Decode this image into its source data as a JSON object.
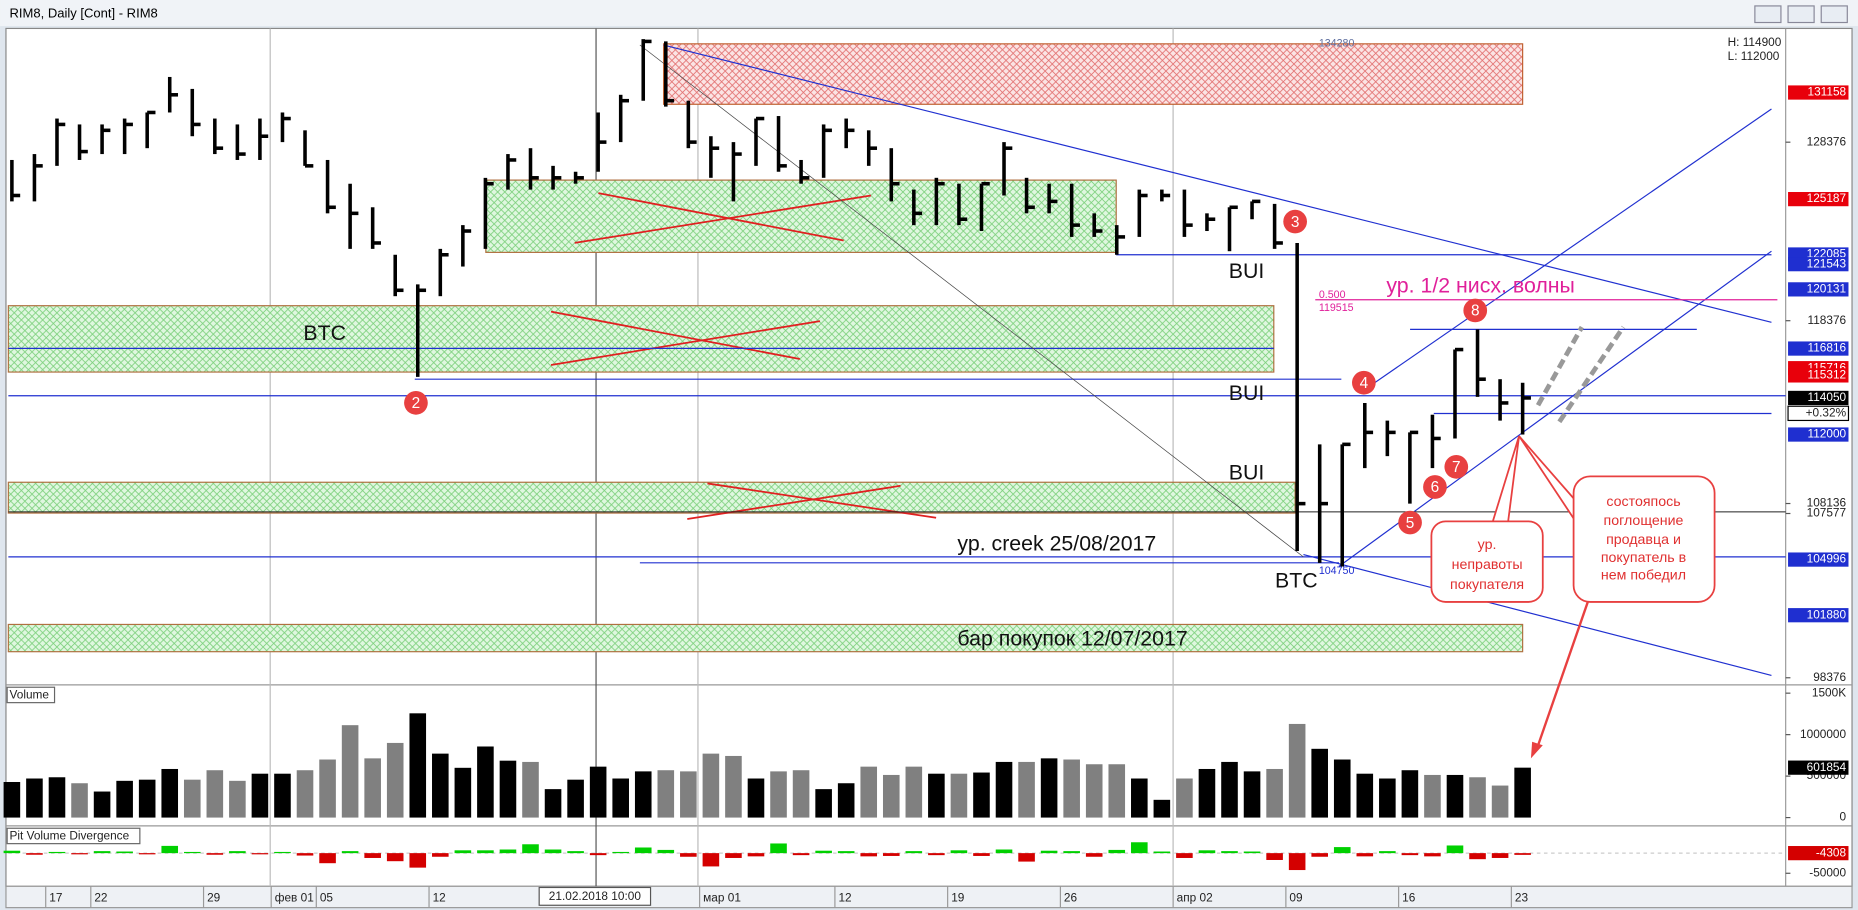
{
  "window": {
    "title": "RIM8, Daily [Cont] - RIM8"
  },
  "chart_data": [
    {
      "type": "ohlc",
      "color": "#000000",
      "categories": [
        null,
        null,
        "17",
        null,
        "22",
        null,
        null,
        null,
        null,
        "29",
        null,
        null,
        "фев 01",
        null,
        "05",
        null,
        null,
        null,
        null,
        "12",
        null,
        null,
        null,
        null,
        null,
        null,
        null,
        null,
        null,
        null,
        null,
        "мар 01",
        null,
        null,
        null,
        null,
        null,
        "12",
        null,
        null,
        null,
        null,
        "19",
        null,
        null,
        null,
        null,
        "26",
        null,
        null,
        null,
        null,
        "апр 02",
        null,
        null,
        null,
        null,
        "09",
        null,
        null,
        null,
        null,
        "16",
        null,
        null,
        null,
        null,
        "23"
      ],
      "high": [
        127380,
        127710,
        129700,
        129370,
        129370,
        129700,
        130040,
        132030,
        131360,
        129700,
        129370,
        129700,
        130040,
        129040,
        127380,
        126050,
        124730,
        122070,
        120410,
        122400,
        123730,
        126380,
        127710,
        128040,
        127050,
        126720,
        130040,
        131030,
        134150,
        134020,
        130700,
        128710,
        128380,
        129700,
        129840,
        127380,
        129370,
        129700,
        129040,
        128040,
        125720,
        126380,
        126050,
        126050,
        128380,
        126380,
        126050,
        126050,
        124390,
        123730,
        125720,
        125720,
        125720,
        124390,
        124730,
        125060,
        124920,
        122730,
        111450,
        111450,
        113770,
        112780,
        112120,
        113110,
        116760,
        117890,
        115100,
        114900
      ],
      "low": [
        125060,
        125060,
        127050,
        127380,
        127710,
        127710,
        128040,
        130040,
        128710,
        127710,
        127380,
        127380,
        128380,
        127050,
        124390,
        122400,
        122400,
        119750,
        115230,
        119750,
        121410,
        122400,
        125720,
        125720,
        125720,
        126050,
        126720,
        128380,
        130700,
        130370,
        128040,
        126380,
        125060,
        127050,
        126720,
        126050,
        126380,
        128040,
        127050,
        125060,
        123730,
        123730,
        123730,
        123400,
        125390,
        124390,
        124390,
        123070,
        123070,
        122070,
        123070,
        125060,
        123070,
        123400,
        122270,
        124060,
        122400,
        105480,
        104810,
        104610,
        110120,
        110790,
        108130,
        110120,
        111780,
        114110,
        112780,
        112000
      ],
      "close": [
        125390,
        127050,
        129370,
        127850,
        129040,
        129370,
        130040,
        131030,
        129370,
        128040,
        127710,
        128710,
        129700,
        127050,
        124730,
        124390,
        122730,
        120080,
        120080,
        122070,
        123400,
        126050,
        127380,
        126380,
        126380,
        126380,
        128380,
        130700,
        134020,
        130700,
        128380,
        128040,
        127710,
        129700,
        127050,
        126380,
        129040,
        129040,
        128040,
        126050,
        124390,
        126050,
        124060,
        126050,
        128040,
        124730,
        125060,
        123730,
        123400,
        123070,
        125390,
        125390,
        123730,
        124060,
        124730,
        125060,
        122730,
        108130,
        108130,
        111450,
        112120,
        112120,
        112120,
        111780,
        116760,
        115100,
        113770,
        114050
      ],
      "ylim": [
        97978,
        134681
      ],
      "yticks": [
        98376,
        107577,
        108136,
        118376,
        128376
      ],
      "price_levels": [
        {
          "value": 131158,
          "color": "#e8000b"
        },
        {
          "value": 125187,
          "color": "#e8000b"
        },
        {
          "value": 122085,
          "color": "#1f2fd0"
        },
        {
          "value": 121543,
          "color": "#1f2fd0"
        },
        {
          "value": 120131,
          "color": "#1f2fd0"
        },
        {
          "value": 116816,
          "color": "#1f2fd0"
        },
        {
          "value": 115716,
          "color": "#e8000b"
        },
        {
          "value": 115312,
          "color": "#e8000b"
        },
        {
          "value": 114050,
          "color": "#000000"
        },
        {
          "value": 112000,
          "color": "#1f2fd0"
        },
        {
          "value": 104996,
          "color": "#1f2fd0"
        },
        {
          "value": 101880,
          "color": "#1f2fd0"
        }
      ],
      "change_label": "+0.32%",
      "info": [
        "H: 114900",
        "L: 112000"
      ],
      "crosshair_label": "21.02.2018 10:00",
      "annotations": [
        "BTC",
        "BUI",
        "BUI",
        "BUI",
        "BTC",
        "ур. creek 25/08/2017",
        "бар покупок 12/07/2017",
        "ур. 1/2 нисх. волны",
        "0.500",
        "119515",
        "134280",
        "104750"
      ],
      "wave_labels": [
        "2",
        "3",
        "4",
        "5",
        "6",
        "7",
        "8"
      ],
      "callouts": [
        [
          "ур.",
          "неправоты",
          "покупателя"
        ],
        [
          "состояпось",
          "поглощение",
          "продавца и",
          "покупатель в",
          "нем победил"
        ]
      ]
    },
    {
      "type": "volume",
      "title": "Volume",
      "up_color": "#000000",
      "down_color": "#808080",
      "values": [
        429000,
        471000,
        486000,
        414000,
        314000,
        443000,
        457000,
        586000,
        457000,
        571000,
        443000,
        529000,
        529000,
        571000,
        700000,
        1114000,
        714000,
        900000,
        1257000,
        771000,
        600000,
        857000,
        686000,
        671000,
        343000,
        457000,
        614000,
        471000,
        557000,
        571000,
        557000,
        771000,
        743000,
        471000,
        557000,
        571000,
        343000,
        414000,
        614000,
        514000,
        614000,
        529000,
        529000,
        543000,
        671000,
        671000,
        714000,
        700000,
        643000,
        643000,
        471000,
        214000,
        471000,
        586000,
        671000,
        557000,
        586000,
        1129000,
        829000,
        700000,
        529000,
        471000,
        571000,
        514000,
        514000,
        486000,
        386000,
        601854
      ],
      "ylim": [
        0,
        1500000
      ],
      "yticks": [
        0,
        500000,
        1000000,
        {
          "value": 1500000,
          "label": "1500K"
        }
      ]
    },
    {
      "type": "divergence",
      "title": "Pit Volume Divergence",
      "up_color": "#00d000",
      "down_color": "#d40000",
      "values": [
        6000,
        -4000,
        3000,
        -3000,
        5000,
        4000,
        -3000,
        18000,
        3000,
        -4000,
        5000,
        -3000,
        3000,
        -6000,
        -25000,
        5000,
        -12000,
        -20000,
        -36000,
        -9000,
        7000,
        7000,
        9000,
        22000,
        9000,
        5000,
        -5000,
        3000,
        14000,
        8000,
        -9000,
        -33000,
        -12000,
        -8000,
        24000,
        -5000,
        6000,
        5000,
        -8000,
        -7000,
        5000,
        -5000,
        7000,
        -7000,
        9000,
        -21000,
        6000,
        5000,
        -9000,
        8000,
        27000,
        4000,
        -12000,
        7000,
        5000,
        4000,
        -17000,
        -42000,
        -9000,
        15000,
        -8000,
        5000,
        -5000,
        -8000,
        19000,
        -15000,
        -12000,
        -4308
      ],
      "ylim": [
        -64700,
        61800
      ],
      "yticks": [
        -50000
      ]
    }
  ]
}
